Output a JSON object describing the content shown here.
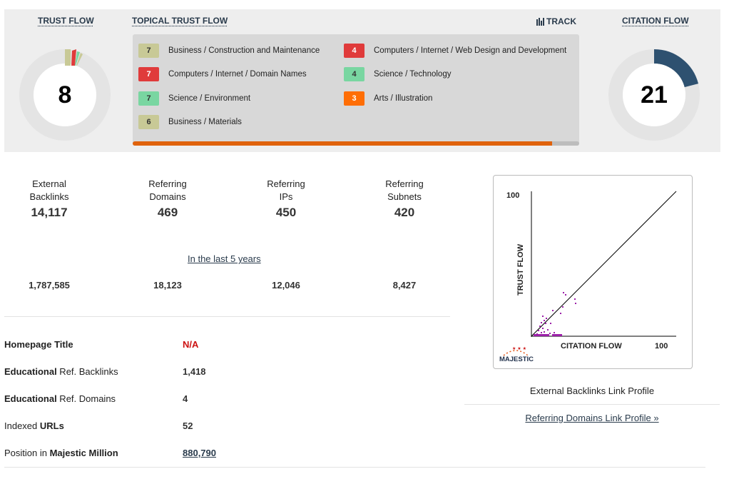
{
  "trust_flow": {
    "header": "TRUST FLOW",
    "value": "8"
  },
  "topical_trust_flow": {
    "header": "TOPICAL TRUST FLOW",
    "track_label": "TRACK",
    "topics": [
      {
        "score": "7",
        "label": "Business / Construction and Maintenance",
        "color": "#c8c996"
      },
      {
        "score": "4",
        "label": "Computers / Internet / Web Design and Development",
        "color": "#e03b3b"
      },
      {
        "score": "7",
        "label": "Computers / Internet / Domain Names",
        "color": "#e03b3b"
      },
      {
        "score": "4",
        "label": "Science / Technology",
        "color": "#79d6a1"
      },
      {
        "score": "7",
        "label": "Science / Environment",
        "color": "#79d6a1"
      },
      {
        "score": "3",
        "label": "Arts / Illustration",
        "color": "#ff6e05"
      },
      {
        "score": "6",
        "label": "Business / Materials",
        "color": "#c8c996"
      }
    ],
    "progress_fraction": 0.94
  },
  "citation_flow": {
    "header": "CITATION FLOW",
    "value": "21"
  },
  "stats": {
    "external_backlinks": {
      "label_1": "External",
      "label_2": "Backlinks",
      "value": "14,117",
      "history": "1,787,585"
    },
    "referring_domains": {
      "label_1": "Referring",
      "label_2": "Domains",
      "value": "469",
      "history": "18,123"
    },
    "referring_ips": {
      "label_1": "Referring",
      "label_2": "IPs",
      "value": "450",
      "history": "12,046"
    },
    "referring_subnets": {
      "label_1": "Referring",
      "label_2": "Subnets",
      "value": "420",
      "history": "8,427"
    },
    "history_link": "In the last 5 years"
  },
  "info": {
    "homepage_title": {
      "label": "Homepage Title",
      "value": "N/A"
    },
    "edu_backlinks": {
      "label_bold": "Educational",
      "label_rest": " Ref. Backlinks",
      "value": "1,418"
    },
    "edu_domains": {
      "label_bold": "Educational",
      "label_rest": " Ref. Domains",
      "value": "4"
    },
    "indexed_urls": {
      "label_rest": "Indexed ",
      "label_bold": "URLs",
      "value": "52"
    },
    "position": {
      "label_rest": "Position in ",
      "label_bold": "Majestic Million",
      "value": "880,790"
    }
  },
  "link_profile_chart": {
    "y_axis_label": "TRUST FLOW",
    "x_axis_label": "CITATION FLOW",
    "y_max_label": "100",
    "x_max_label": "100",
    "logo_text": "MAJESTIC",
    "caption": "External Backlinks Link Profile",
    "referring_link": "Referring Domains Link Profile »",
    "point_color": "#9b1fa8"
  }
}
